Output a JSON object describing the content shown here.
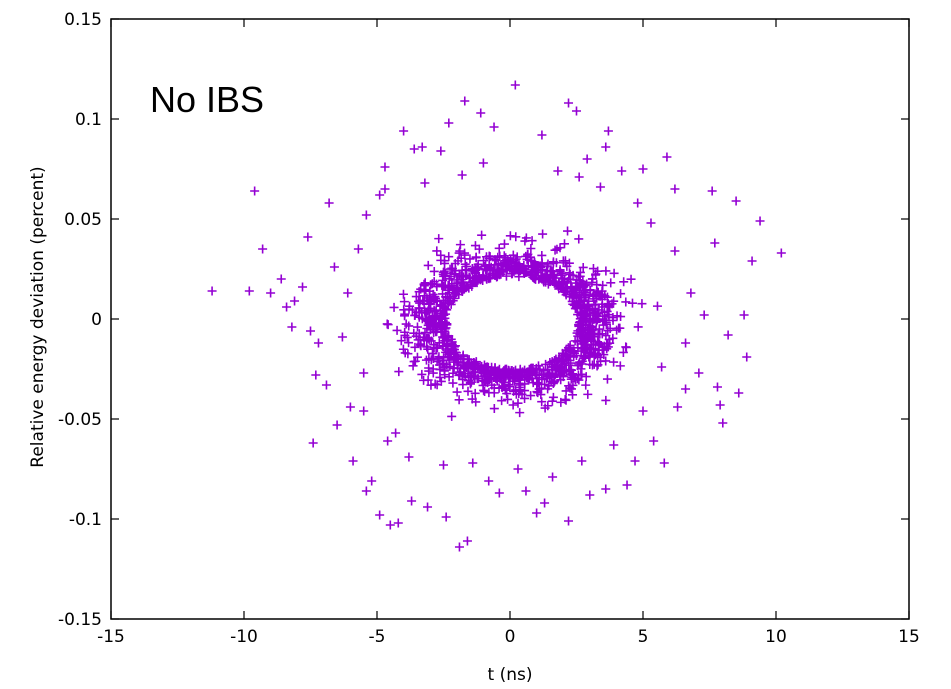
{
  "chart_data": {
    "type": "scatter",
    "title": "",
    "annotation": "No IBS",
    "xlabel": "t (ns)",
    "ylabel": "Relative energy deviation (percent)",
    "xlim": [
      -15,
      15
    ],
    "ylim": [
      -0.15,
      0.15
    ],
    "xticks": [
      -15,
      -10,
      -5,
      0,
      5,
      10,
      15
    ],
    "yticks": [
      -0.15,
      -0.1,
      -0.05,
      0,
      0.05,
      0.1,
      0.15
    ],
    "xtick_labels": [
      "-15",
      "-10",
      "-5",
      "0",
      "5",
      "10",
      "15"
    ],
    "ytick_labels": [
      "-0.15",
      "-0.1",
      "-0.05",
      "0",
      "0.05",
      "0.1",
      "0.15"
    ],
    "grid": false,
    "marker": "+",
    "color": "#9400d3",
    "series": [
      {
        "points": [
          [
            -11.2,
            0.014
          ],
          [
            -9.6,
            0.064
          ],
          [
            -9.3,
            0.035
          ],
          [
            -9.8,
            0.014
          ],
          [
            -8.6,
            0.02
          ],
          [
            -8.4,
            0.006
          ],
          [
            -9.0,
            0.013
          ],
          [
            -8.2,
            -0.004
          ],
          [
            -7.8,
            0.016
          ],
          [
            -7.5,
            -0.006
          ],
          [
            -7.3,
            -0.028
          ],
          [
            -7.6,
            0.041
          ],
          [
            -6.8,
            0.058
          ],
          [
            -7.2,
            -0.012
          ],
          [
            -8.1,
            0.009
          ],
          [
            -7.4,
            -0.062
          ],
          [
            -6.5,
            -0.053
          ],
          [
            -6.0,
            -0.044
          ],
          [
            -5.9,
            -0.071
          ],
          [
            -5.4,
            -0.086
          ],
          [
            -5.2,
            -0.081
          ],
          [
            -4.9,
            -0.098
          ],
          [
            -4.5,
            -0.103
          ],
          [
            -4.2,
            -0.102
          ],
          [
            -3.7,
            -0.091
          ],
          [
            -3.1,
            -0.094
          ],
          [
            -2.4,
            -0.099
          ],
          [
            -1.9,
            -0.114
          ],
          [
            -1.6,
            -0.111
          ],
          [
            -0.4,
            -0.087
          ],
          [
            0.6,
            -0.086
          ],
          [
            1.3,
            -0.092
          ],
          [
            2.2,
            -0.101
          ],
          [
            3.0,
            -0.088
          ],
          [
            3.6,
            -0.085
          ],
          [
            4.4,
            -0.083
          ],
          [
            4.7,
            -0.071
          ],
          [
            5.4,
            -0.061
          ],
          [
            5.8,
            -0.072
          ],
          [
            6.3,
            -0.044
          ],
          [
            6.6,
            -0.035
          ],
          [
            7.1,
            -0.027
          ],
          [
            7.8,
            -0.034
          ],
          [
            8.0,
            -0.052
          ],
          [
            7.9,
            -0.043
          ],
          [
            8.6,
            -0.037
          ],
          [
            8.9,
            -0.019
          ],
          [
            8.2,
            -0.008
          ],
          [
            8.8,
            0.002
          ],
          [
            9.1,
            0.029
          ],
          [
            9.4,
            0.049
          ],
          [
            10.2,
            0.033
          ],
          [
            8.5,
            0.059
          ],
          [
            7.7,
            0.038
          ],
          [
            7.6,
            0.064
          ],
          [
            6.2,
            0.065
          ],
          [
            5.9,
            0.081
          ],
          [
            5.0,
            0.075
          ],
          [
            3.6,
            0.086
          ],
          [
            2.9,
            0.08
          ],
          [
            3.4,
            0.066
          ],
          [
            2.2,
            0.108
          ],
          [
            2.5,
            0.104
          ],
          [
            1.2,
            0.092
          ],
          [
            0.2,
            0.117
          ],
          [
            -0.6,
            0.096
          ],
          [
            -1.1,
            0.103
          ],
          [
            -2.3,
            0.098
          ],
          [
            -2.6,
            0.084
          ],
          [
            -3.6,
            0.085
          ],
          [
            -4.7,
            0.076
          ],
          [
            -4.9,
            0.062
          ],
          [
            -5.4,
            0.052
          ],
          [
            -4.7,
            0.065
          ],
          [
            -1.7,
            0.109
          ],
          [
            -4.0,
            0.094
          ],
          [
            -3.3,
            0.086
          ],
          [
            3.7,
            0.094
          ],
          [
            1.8,
            0.074
          ],
          [
            -1.0,
            0.078
          ],
          [
            -2.5,
            -0.073
          ],
          [
            -1.4,
            -0.072
          ],
          [
            0.3,
            -0.075
          ],
          [
            1.6,
            -0.079
          ],
          [
            2.7,
            -0.071
          ],
          [
            3.9,
            -0.063
          ],
          [
            -3.8,
            -0.069
          ],
          [
            -4.6,
            -0.061
          ],
          [
            -5.5,
            -0.046
          ],
          [
            5.0,
            -0.046
          ],
          [
            -5.7,
            0.035
          ],
          [
            -6.1,
            0.013
          ],
          [
            -6.3,
            -0.009
          ],
          [
            -5.5,
            -0.027
          ],
          [
            6.2,
            0.034
          ],
          [
            6.8,
            0.013
          ],
          [
            6.6,
            -0.012
          ],
          [
            5.7,
            -0.024
          ],
          [
            -1.8,
            0.072
          ],
          [
            2.6,
            0.071
          ],
          [
            1.0,
            -0.097
          ],
          [
            -0.8,
            -0.081
          ],
          [
            4.2,
            0.074
          ],
          [
            -3.2,
            0.068
          ],
          [
            -6.6,
            0.026
          ],
          [
            7.3,
            0.002
          ],
          [
            5.3,
            0.048
          ],
          [
            -6.9,
            -0.033
          ],
          [
            4.8,
            0.058
          ],
          [
            -4.3,
            -0.057
          ]
        ]
      }
    ]
  }
}
